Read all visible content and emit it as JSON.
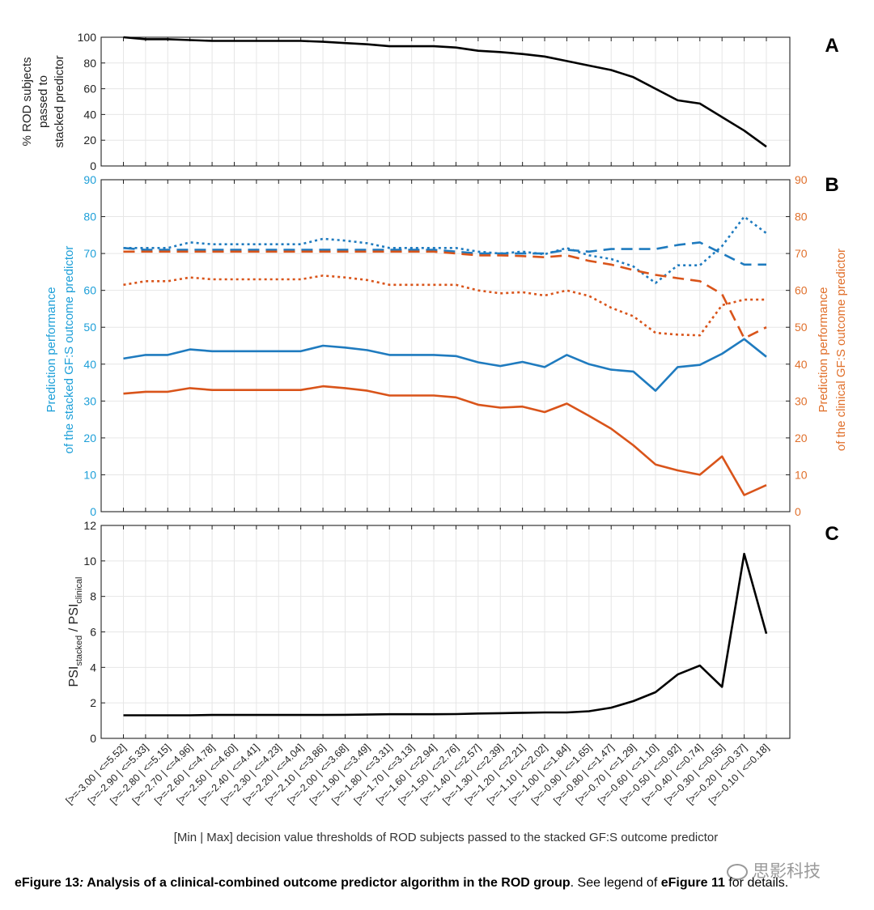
{
  "caption": {
    "label": "eFigure 13",
    "colon": ":",
    "title": " Analysis of a clinical-combined outcome predictor algorithm in the ROD group",
    "rest_before": ". See legend of ",
    "ref": "eFigure 11",
    "rest_after": " for details."
  },
  "watermark": {
    "text": "思影科技",
    "icon": "wechat-logo-icon"
  },
  "colors": {
    "blue": "#1f7bbf",
    "orange": "#d9541a",
    "black": "#000000",
    "blue_axis": "#1d9fd8",
    "orange_axis": "#e0702c"
  },
  "chart_data": [
    {
      "panel_label": "A",
      "type": "line",
      "ylabel": [
        "% ROD subjects",
        "passed to",
        "stacked predictor"
      ],
      "ylim": [
        0,
        100
      ],
      "yticks": [
        0,
        20,
        40,
        60,
        80,
        100
      ],
      "grid": true,
      "series": [
        {
          "color": "#000000",
          "style": "solid",
          "values": [
            100,
            98.5,
            98.5,
            97.8,
            97.2,
            97.2,
            97.2,
            97.2,
            97.2,
            96.5,
            95.5,
            94.5,
            93,
            93,
            93,
            92,
            89.5,
            88.5,
            87,
            85,
            81.5,
            78,
            74.5,
            69,
            60,
            51,
            48.5,
            38,
            27.5,
            15
          ]
        }
      ]
    },
    {
      "panel_label": "B",
      "type": "line",
      "ylabel_left": [
        "Prediction performance",
        "of the stacked GF:S outcome predictor"
      ],
      "ylabel_right": [
        "Prediction performance",
        "of the clinical GF:S outcome predictor"
      ],
      "ylim": [
        0,
        90
      ],
      "yticks": [
        0,
        10,
        20,
        30,
        40,
        50,
        60,
        70,
        80,
        90
      ],
      "grid": true,
      "series": [
        {
          "color": "#1f7bbf",
          "style": "dashed",
          "values": [
            71.5,
            71,
            71,
            71,
            71,
            71,
            71,
            71,
            71,
            71,
            71,
            71,
            71,
            71,
            71,
            70.5,
            70,
            70,
            70,
            70,
            71,
            70.5,
            71.2,
            71.2,
            71.2,
            72.3,
            73,
            70,
            67,
            67
          ]
        },
        {
          "color": "#1f7bbf",
          "style": "dotted",
          "values": [
            71.5,
            71.5,
            71.5,
            73,
            72.5,
            72.5,
            72.5,
            72.5,
            72.5,
            74,
            73.5,
            72.8,
            71.5,
            71.5,
            71.5,
            71.5,
            70.5,
            70,
            70.5,
            69.8,
            71.5,
            69.5,
            68.5,
            66.5,
            62,
            66.8,
            66.8,
            72,
            80,
            75.5
          ]
        },
        {
          "color": "#d9541a",
          "style": "dashed",
          "values": [
            70.5,
            70.5,
            70.5,
            70.5,
            70.5,
            70.5,
            70.5,
            70.5,
            70.5,
            70.5,
            70.5,
            70.5,
            70.5,
            70.5,
            70.5,
            70,
            69.5,
            69.5,
            69.3,
            69,
            69.5,
            68,
            67,
            65.5,
            64.2,
            63.3,
            62.5,
            59,
            47,
            50
          ]
        },
        {
          "color": "#d9541a",
          "style": "dotted",
          "values": [
            61.5,
            62.5,
            62.5,
            63.5,
            63,
            63,
            63,
            63,
            63,
            64,
            63.5,
            62.8,
            61.5,
            61.5,
            61.5,
            61.5,
            60,
            59.2,
            59.5,
            58.6,
            60,
            58.5,
            55.3,
            53,
            48.5,
            48,
            47.8,
            56,
            57.5,
            57.5
          ]
        },
        {
          "color": "#1f7bbf",
          "style": "solid",
          "values": [
            41.5,
            42.5,
            42.5,
            44,
            43.5,
            43.5,
            43.5,
            43.5,
            43.5,
            45,
            44.5,
            43.8,
            42.5,
            42.5,
            42.5,
            42.2,
            40.5,
            39.5,
            40.6,
            39.2,
            42.5,
            40,
            38.5,
            38,
            32.8,
            39.2,
            39.8,
            42.8,
            46.8,
            42
          ]
        },
        {
          "color": "#d9541a",
          "style": "solid",
          "values": [
            32,
            32.5,
            32.5,
            33.5,
            33,
            33,
            33,
            33,
            33,
            34,
            33.5,
            32.8,
            31.5,
            31.5,
            31.5,
            31,
            29,
            28.2,
            28.5,
            27,
            29.3,
            26,
            22.5,
            18,
            12.8,
            11.2,
            10,
            15,
            4.5,
            7.2
          ]
        }
      ]
    },
    {
      "panel_label": "C",
      "type": "line",
      "ylabel": {
        "main1": "PSI",
        "sub1": "stacked",
        "main2": " / PSI",
        "sub2": "clinical"
      },
      "ylim": [
        0,
        12
      ],
      "yticks": [
        0,
        2,
        4,
        6,
        8,
        10,
        12
      ],
      "grid": true,
      "xlabel": "[Min | Max] decision value thresholds of ROD subjects passed to the stacked GF:S outcome predictor",
      "categories": [
        "[>=-3.00 | <=5.52]",
        "[>=-2.90 | <=5.33]",
        "[>=-2.80 | <=5.15]",
        "[>=-2.70 | <=4.96]",
        "[>=-2.60 | <=4.78]",
        "[>=-2.50 | <=4.60]",
        "[>=-2.40 | <=4.41]",
        "[>=-2.30 | <=4.23]",
        "[>=-2.20 | <=4.04]",
        "[>=-2.10 | <=3.86]",
        "[>=-2.00 | <=3.68]",
        "[>=-1.90 | <=3.49]",
        "[>=-1.80 | <=3.31]",
        "[>=-1.70 | <=3.13]",
        "[>=-1.60 | <=2.94]",
        "[>=-1.50 | <=2.76]",
        "[>=-1.40 | <=2.57]",
        "[>=-1.30 | <=2.39]",
        "[>=-1.20 | <=2.21]",
        "[>=-1.10 | <=2.02]",
        "[>=-1.00 | <=1.84]",
        "[>=-0.90 | <=1.65]",
        "[>=-0.80 | <=1.47]",
        "[>=-0.70 | <=1.29]",
        "[>=-0.60 | <=1.10]",
        "[>=-0.50 | <=0.92]",
        "[>=-0.40 | <=0.74]",
        "[>=-0.30 | <=0.55]",
        "[>=-0.20 | <=0.37]",
        "[>=-0.10 | <=0.18]"
      ],
      "series": [
        {
          "color": "#000000",
          "style": "solid",
          "values": [
            1.3,
            1.3,
            1.3,
            1.3,
            1.32,
            1.32,
            1.32,
            1.32,
            1.32,
            1.32,
            1.33,
            1.34,
            1.36,
            1.36,
            1.36,
            1.37,
            1.4,
            1.42,
            1.44,
            1.46,
            1.46,
            1.53,
            1.73,
            2.1,
            2.6,
            3.6,
            4.1,
            2.9,
            10.4,
            5.9
          ]
        }
      ]
    }
  ]
}
